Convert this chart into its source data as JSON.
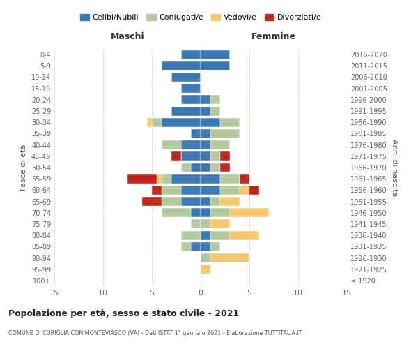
{
  "age_groups": [
    "100+",
    "95-99",
    "90-94",
    "85-89",
    "80-84",
    "75-79",
    "70-74",
    "65-69",
    "60-64",
    "55-59",
    "50-54",
    "45-49",
    "40-44",
    "35-39",
    "30-34",
    "25-29",
    "20-24",
    "15-19",
    "10-14",
    "5-9",
    "0-4"
  ],
  "birth_years": [
    "≤ 1920",
    "1921-1925",
    "1926-1930",
    "1931-1935",
    "1936-1940",
    "1941-1945",
    "1946-1950",
    "1951-1955",
    "1956-1960",
    "1961-1965",
    "1966-1970",
    "1971-1975",
    "1976-1980",
    "1981-1985",
    "1986-1990",
    "1991-1995",
    "1996-2000",
    "2001-2005",
    "2006-2010",
    "2011-2015",
    "2016-2020"
  ],
  "colors": {
    "celibi": "#3d7ab5",
    "coniugati": "#b5c9a0",
    "vedovi": "#f5c86e",
    "divorziati": "#c0281c"
  },
  "males": {
    "celibi": [
      0,
      0,
      0,
      1,
      0,
      0,
      1,
      2,
      2,
      3,
      1,
      2,
      2,
      1,
      4,
      3,
      2,
      2,
      3,
      4,
      2
    ],
    "coniugati": [
      0,
      0,
      0,
      1,
      2,
      1,
      3,
      2,
      2,
      1,
      1,
      0,
      2,
      0,
      1,
      0,
      0,
      0,
      0,
      0,
      0
    ],
    "vedovi": [
      0,
      0,
      0,
      0,
      0,
      0,
      0,
      0,
      0,
      0.5,
      0,
      0,
      0,
      0,
      0.5,
      0,
      0,
      0,
      0,
      0,
      0
    ],
    "divorziati": [
      0,
      0,
      0,
      0,
      0,
      0,
      0,
      2,
      1,
      3,
      0,
      1,
      0,
      0,
      0,
      0,
      0,
      0,
      0,
      0,
      0
    ]
  },
  "females": {
    "celibi": [
      0,
      0,
      0,
      1,
      1,
      0,
      1,
      1,
      2,
      2,
      1,
      1,
      1,
      1,
      2,
      1,
      1,
      0,
      0,
      3,
      3
    ],
    "coniugati": [
      0,
      0,
      1,
      1,
      2,
      1,
      2,
      1,
      2,
      2,
      1,
      1,
      2,
      3,
      2,
      1,
      1,
      0,
      0,
      0,
      0
    ],
    "vedovi": [
      0,
      1,
      4,
      0,
      3,
      2,
      4,
      2,
      1,
      0,
      0,
      0,
      0,
      0,
      0,
      0,
      0,
      0,
      0,
      0,
      0
    ],
    "divorziati": [
      0,
      0,
      0,
      0,
      0,
      0,
      0,
      0,
      1,
      1,
      1,
      1,
      0,
      0,
      0,
      0,
      0,
      0,
      0,
      0,
      0
    ]
  },
  "xlim": 15,
  "title": "Popolazione per età, sesso e stato civile - 2021",
  "subtitle": "COMUNE DI CURIGLIA CON MONTEVIASCO (VA) - Dati ISTAT 1° gennaio 2021 - Elaborazione TUTTITALIA.IT",
  "xlabel_left": "Maschi",
  "xlabel_right": "Femmine",
  "ylabel_left": "Fasce di età",
  "ylabel_right": "Anni di nascita",
  "legend_labels": [
    "Celibi/Nubili",
    "Coniugati/e",
    "Vedovi/e",
    "Divorziati/e"
  ],
  "bg_color": "#ffffff",
  "grid_color": "#cccccc"
}
